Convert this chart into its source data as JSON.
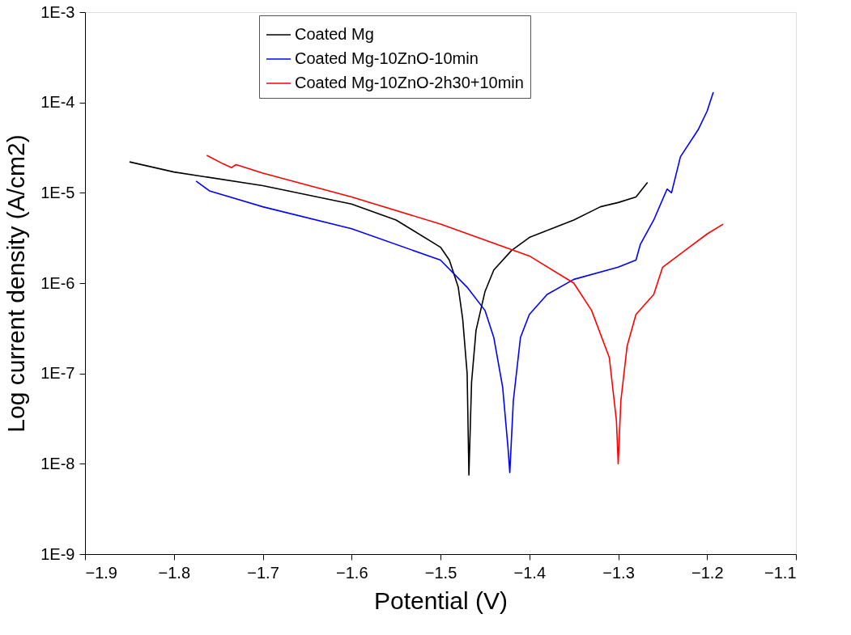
{
  "chart_data": {
    "type": "line",
    "xlabel": "Potential (V)",
    "ylabel": "Log current density (A/cm2)",
    "log": "y",
    "xlim": [
      -1.9,
      -1.1
    ],
    "xticks": [
      -1.9,
      -1.8,
      -1.7,
      -1.6,
      -1.5,
      -1.4,
      -1.3,
      -1.2,
      -1.1
    ],
    "ylim": [
      1e-09,
      0.001
    ],
    "yticks": [
      {
        "value": 1e-09,
        "label": "1E-9"
      },
      {
        "value": 1e-08,
        "label": "1E-8"
      },
      {
        "value": 1e-07,
        "label": "1E-7"
      },
      {
        "value": 1e-06,
        "label": "1E-6"
      },
      {
        "value": 1e-05,
        "label": "1E-5"
      },
      {
        "value": 0.0001,
        "label": "1E-4"
      },
      {
        "value": 0.001,
        "label": "1E-3"
      }
    ],
    "grid": false,
    "legend": "top",
    "marker": "none",
    "line_style": "solid",
    "series": [
      {
        "name": "Coated Mg",
        "color": "#000000",
        "x": [
          -1.85,
          -1.8,
          -1.7,
          -1.6,
          -1.55,
          -1.5,
          -1.49,
          -1.48,
          -1.475,
          -1.47,
          -1.468,
          -1.465,
          -1.46,
          -1.45,
          -1.44,
          -1.42,
          -1.4,
          -1.35,
          -1.32,
          -1.3,
          -1.28,
          -1.267
        ],
        "values": [
          2.2e-05,
          1.7e-05,
          1.2e-05,
          7.5e-06,
          5e-06,
          2.5e-06,
          1.8e-06,
          9e-07,
          4e-07,
          1e-07,
          7.5e-09,
          8e-08,
          3e-07,
          8e-07,
          1.4e-06,
          2.3e-06,
          3.2e-06,
          5e-06,
          7e-06,
          7.8e-06,
          9e-06,
          1.3e-05
        ]
      },
      {
        "name": "Coated Mg-10ZnO-10min",
        "color": "#0000ff",
        "x": [
          -1.775,
          -1.76,
          -1.7,
          -1.6,
          -1.5,
          -1.47,
          -1.45,
          -1.44,
          -1.43,
          -1.424,
          -1.422,
          -1.418,
          -1.41,
          -1.4,
          -1.38,
          -1.35,
          -1.3,
          -1.28,
          -1.275,
          -1.26,
          -1.245,
          -1.24,
          -1.23,
          -1.21,
          -1.2,
          -1.193
        ],
        "values": [
          1.35e-05,
          1.05e-05,
          7e-06,
          4e-06,
          1.8e-06,
          9e-07,
          5e-07,
          2.5e-07,
          7e-08,
          1.5e-08,
          8e-09,
          5e-08,
          2.5e-07,
          4.5e-07,
          7.5e-07,
          1.1e-06,
          1.5e-06,
          1.8e-06,
          2.7e-06,
          5e-06,
          1.1e-05,
          1e-05,
          2.5e-05,
          5e-05,
          8e-05,
          0.00013
        ]
      },
      {
        "name": "Coated Mg-10ZnO-2h30+10min",
        "color": "#ff0000",
        "x": [
          -1.763,
          -1.745,
          -1.735,
          -1.73,
          -1.7,
          -1.6,
          -1.5,
          -1.45,
          -1.4,
          -1.35,
          -1.33,
          -1.31,
          -1.302,
          -1.3,
          -1.297,
          -1.29,
          -1.28,
          -1.26,
          -1.25,
          -1.22,
          -1.2,
          -1.182
        ],
        "values": [
          2.6e-05,
          2.1e-05,
          1.9e-05,
          2.05e-05,
          1.65e-05,
          9e-06,
          4.5e-06,
          3e-06,
          2e-06,
          1e-06,
          5e-07,
          1.5e-07,
          3e-08,
          1e-08,
          5e-08,
          2e-07,
          4.5e-07,
          7.5e-07,
          1.5e-06,
          2.5e-06,
          3.5e-06,
          4.5e-06
        ]
      }
    ]
  }
}
